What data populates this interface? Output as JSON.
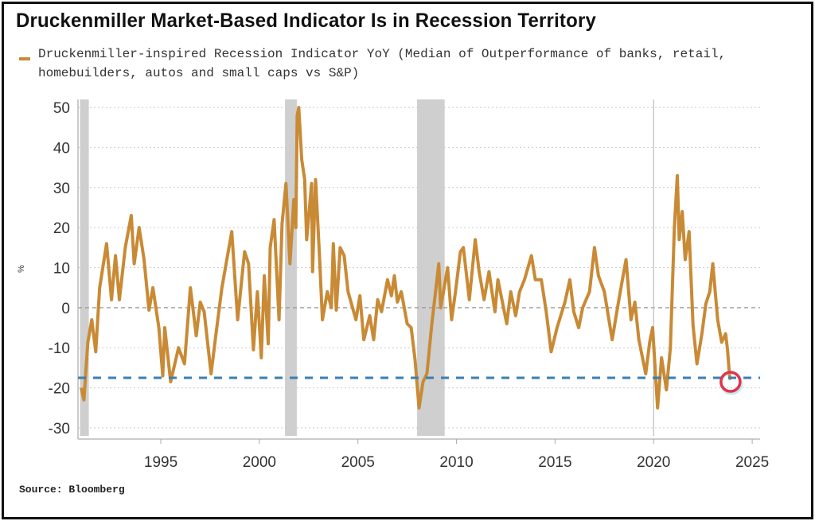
{
  "title": "Druckenmiller Market-Based Indicator Is in Recession Territory",
  "source": "Source: Bloomberg",
  "colors": {
    "series": "#c98a35",
    "threshold": "#3a7fb0",
    "recession": "#cfcfcf",
    "marker": "#e0344f"
  },
  "chart_data": {
    "type": "line",
    "title": "Druckenmiller Market-Based Indicator Is in Recession Territory",
    "xlabel": "",
    "ylabel": "%",
    "xlim": [
      1990.8,
      2025.4
    ],
    "ylim": [
      -32,
      52
    ],
    "yticks": [
      50,
      40,
      30,
      20,
      10,
      0,
      -10,
      -20,
      -30
    ],
    "xticks": [
      1995,
      2000,
      2005,
      2010,
      2015,
      2020,
      2025
    ],
    "grid": true,
    "legend": {
      "placement": "top-left",
      "entries": [
        "Druckenmiller-inspired Recession Indicator YoY (Median of Outperformance of banks, retail, homebuilders, autos and small caps vs S&P)"
      ]
    },
    "recessions": [
      [
        1990.9,
        1991.35
      ],
      [
        2001.3,
        2001.9
      ],
      [
        2008.0,
        2009.4
      ]
    ],
    "threshold": -17.5,
    "highlight": {
      "x": 2023.9,
      "y": -18.5
    },
    "reference_vline": 2020.0,
    "series": [
      {
        "name": "Druckenmiller-inspired Recession Indicator YoY (Median of Outperformance of banks, retail, homebuilders, autos and small caps vs S&P)",
        "x": [
          1990.96,
          1991.1,
          1991.3,
          1991.5,
          1991.7,
          1991.9,
          1992.25,
          1992.5,
          1992.7,
          1992.9,
          1993.2,
          1993.5,
          1993.65,
          1993.9,
          1994.15,
          1994.4,
          1994.6,
          1994.9,
          1995.1,
          1995.2,
          1995.5,
          1995.9,
          1996.2,
          1996.5,
          1996.8,
          1997.0,
          1997.2,
          1997.55,
          1997.8,
          1998.1,
          1998.6,
          1998.9,
          1999.25,
          1999.45,
          1999.7,
          1999.9,
          2000.1,
          2000.25,
          2000.45,
          2000.55,
          2000.75,
          2001.0,
          2001.15,
          2001.35,
          2001.55,
          2001.75,
          2001.85,
          2001.92,
          2002.0,
          2002.15,
          2002.3,
          2002.4,
          2002.65,
          2002.7,
          2002.85,
          2003.05,
          2003.2,
          2003.45,
          2003.65,
          2003.75,
          2003.9,
          2004.1,
          2004.3,
          2004.5,
          2004.9,
          2005.1,
          2005.3,
          2005.6,
          2005.8,
          2006.0,
          2006.2,
          2006.5,
          2006.7,
          2006.85,
          2007.0,
          2007.2,
          2007.5,
          2007.7,
          2007.9,
          2008.1,
          2008.3,
          2008.5,
          2008.75,
          2009.1,
          2009.2,
          2009.55,
          2009.75,
          2009.95,
          2010.2,
          2010.35,
          2010.65,
          2010.95,
          2011.15,
          2011.4,
          2011.65,
          2011.95,
          2012.1,
          2012.55,
          2012.75,
          2013.0,
          2013.2,
          2013.45,
          2013.8,
          2014.0,
          2014.3,
          2014.55,
          2014.8,
          2015.1,
          2015.5,
          2015.75,
          2015.95,
          2016.2,
          2016.4,
          2016.75,
          2017.0,
          2017.2,
          2017.5,
          2017.9,
          2018.2,
          2018.45,
          2018.6,
          2018.85,
          2019.05,
          2019.25,
          2019.6,
          2019.8,
          2019.95,
          2020.2,
          2020.4,
          2020.65,
          2020.85,
          2021.05,
          2021.2,
          2021.3,
          2021.45,
          2021.6,
          2021.8,
          2022.0,
          2022.2,
          2022.45,
          2022.65,
          2022.85,
          2023.0,
          2023.25,
          2023.45,
          2023.65,
          2023.75,
          2023.85,
          2023.9
        ],
        "y": [
          -20,
          -23,
          -8.6,
          -3,
          -11,
          5,
          16,
          2,
          13,
          2,
          15,
          23,
          11,
          20,
          12,
          -0.6,
          5,
          -5,
          -17,
          -5,
          -18.5,
          -10,
          -14,
          5,
          -7,
          1.4,
          -1,
          -16.5,
          -6.5,
          5,
          19,
          -3,
          14,
          11,
          -10.5,
          4,
          -12.5,
          8,
          -9,
          15,
          22,
          -3,
          21,
          31,
          11,
          27,
          20,
          48,
          50,
          37,
          32,
          17,
          31,
          9,
          32,
          13,
          -3,
          4,
          0,
          16,
          -0.6,
          15,
          13,
          4,
          -3,
          3,
          -8,
          -2,
          -8,
          2,
          -1,
          7,
          3,
          8,
          1.4,
          4,
          -4,
          -5,
          -13,
          -25,
          -18.5,
          -16.5,
          -4,
          11,
          0,
          10,
          -3,
          4,
          14,
          15,
          2,
          17,
          9,
          2,
          9,
          -1,
          7,
          -4,
          4,
          -2,
          4,
          7,
          13,
          7,
          7,
          -1,
          -11,
          -5,
          1.4,
          7,
          -1,
          -5,
          0,
          4,
          15,
          8,
          4,
          -8,
          1,
          8,
          12,
          -3,
          1.4,
          -8,
          -16.5,
          -8.6,
          -5,
          -25,
          -12.5,
          -20.5,
          -10,
          20,
          33,
          17,
          24,
          12,
          19,
          -4.5,
          -14,
          -6.5,
          1,
          4,
          11,
          -3,
          -8.6,
          -6.5,
          -10.5,
          -17,
          -18
        ]
      }
    ]
  }
}
